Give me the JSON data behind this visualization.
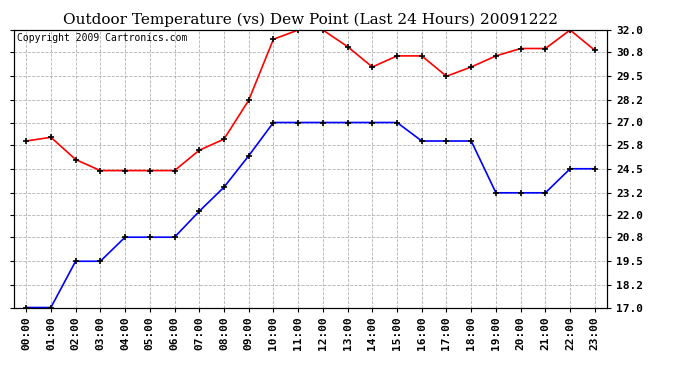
{
  "title": "Outdoor Temperature (vs) Dew Point (Last 24 Hours) 20091222",
  "copyright_text": "Copyright 2009 Cartronics.com",
  "x_labels": [
    "00:00",
    "01:00",
    "02:00",
    "03:00",
    "04:00",
    "05:00",
    "06:00",
    "07:00",
    "08:00",
    "09:00",
    "10:00",
    "11:00",
    "12:00",
    "13:00",
    "14:00",
    "15:00",
    "16:00",
    "17:00",
    "18:00",
    "19:00",
    "20:00",
    "21:00",
    "22:00",
    "23:00"
  ],
  "temp_red": [
    26.0,
    26.2,
    25.0,
    24.4,
    24.4,
    24.4,
    24.4,
    25.5,
    26.1,
    28.2,
    31.5,
    32.0,
    32.0,
    31.1,
    30.0,
    30.6,
    30.6,
    29.5,
    30.0,
    30.6,
    31.0,
    31.0,
    32.0,
    30.9
  ],
  "dew_blue": [
    17.0,
    17.0,
    19.5,
    19.5,
    20.8,
    20.8,
    20.8,
    22.2,
    23.5,
    25.2,
    27.0,
    27.0,
    27.0,
    27.0,
    27.0,
    27.0,
    26.0,
    26.0,
    26.0,
    23.2,
    23.2,
    23.2,
    24.5,
    24.5
  ],
  "ylim": [
    17.0,
    32.0
  ],
  "yticks": [
    17.0,
    18.2,
    19.5,
    20.8,
    22.0,
    23.2,
    24.5,
    25.8,
    27.0,
    28.2,
    29.5,
    30.8,
    32.0
  ],
  "ytick_labels": [
    "17.0",
    "18.2",
    "19.5",
    "20.8",
    "22.0",
    "23.2",
    "24.5",
    "25.8",
    "27.0",
    "28.2",
    "29.5",
    "30.8",
    "32.0"
  ],
  "red_color": "#ff0000",
  "blue_color": "#0000ff",
  "grid_color": "#aaaaaa",
  "bg_color": "#ffffff",
  "title_fontsize": 11,
  "copyright_fontsize": 7,
  "tick_fontsize": 8,
  "marker_color": "#000000"
}
